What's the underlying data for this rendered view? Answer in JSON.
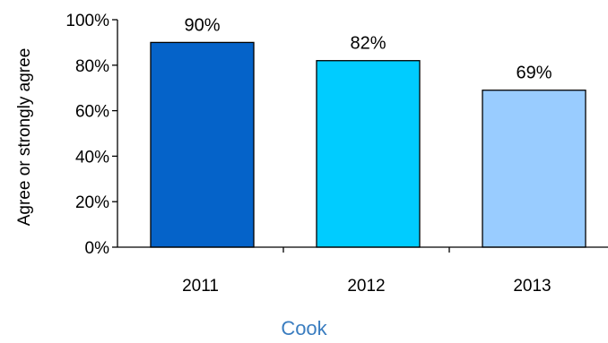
{
  "chart_data": {
    "type": "bar",
    "categories": [
      "2011",
      "2012",
      "2013"
    ],
    "values": [
      90,
      82,
      69
    ],
    "data_labels": [
      "90%",
      "82%",
      "69%"
    ],
    "ylabel": "Agree or strongly agree",
    "xlabel": "Cook",
    "ylim": [
      0,
      100
    ],
    "yticks": [
      0,
      20,
      40,
      60,
      80,
      100
    ],
    "ytick_labels": [
      "0%",
      "20%",
      "40%",
      "60%",
      "80%",
      "100%"
    ],
    "grid": false,
    "legend": "none",
    "bar_colors": [
      "#0563C9",
      "#00CCFF",
      "#99CCFF"
    ],
    "xlabel_color": "#3A7DC0",
    "axis_color": "#000000"
  }
}
